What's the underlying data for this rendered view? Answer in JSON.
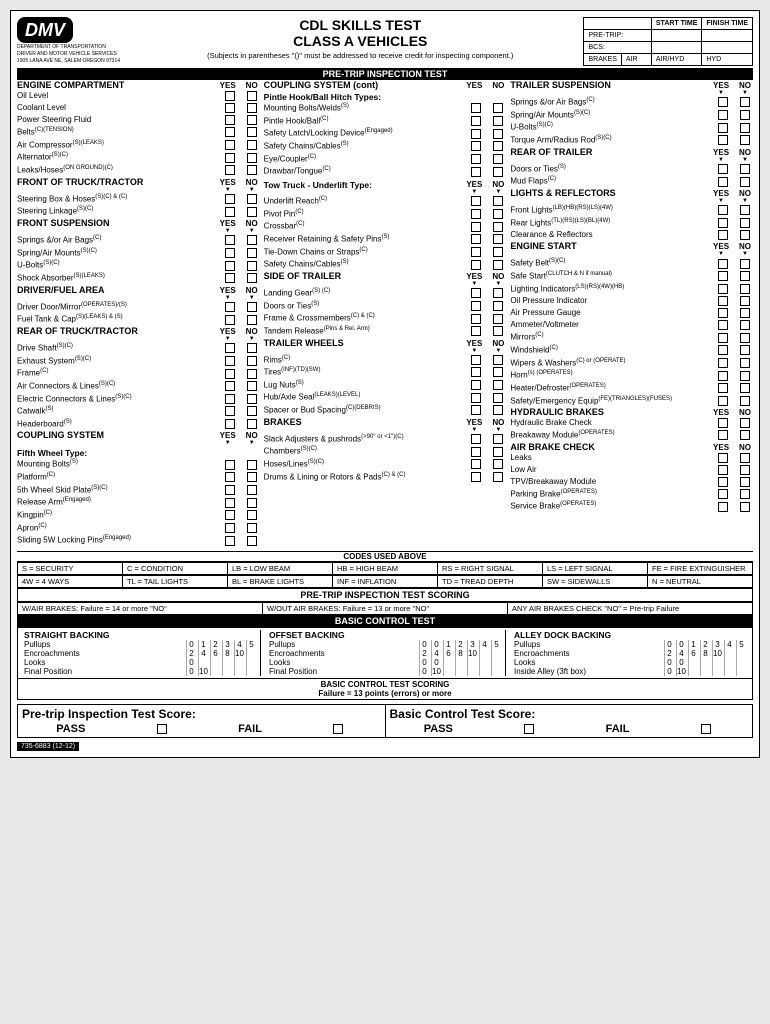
{
  "header": {
    "logo": "DMV",
    "dept1": "DEPARTMENT OF TRANSPORTATION",
    "dept2": "DRIVER AND MOTOR VEHICLE SERVICES",
    "dept3": "1905 LANA AVE NE, SALEM OREGON 97314",
    "title1": "CDL SKILLS TEST",
    "title2": "CLASS A VEHICLES",
    "note": "(Subjects in parentheses \"()\" must be addressed to receive credit for inspecting component.)",
    "time": {
      "start": "START TIME",
      "finish": "FINISH TIME",
      "pretrip": "PRE-TRIP:",
      "bcs": "BCS:",
      "brakes": "BRAKES",
      "air": "AIR",
      "airhyd": "AIR/HYD",
      "hyd": "HYD"
    }
  },
  "bars": {
    "pretrip": "PRE-TRIP INSPECTION TEST",
    "codes": "CODES USED ABOVE",
    "pretripScoring": "PRE-TRIP INSPECTION TEST SCORING",
    "bct": "BASIC CONTROL TEST",
    "bctScoring": "BASIC CONTROL TEST SCORING"
  },
  "yn": {
    "yes": "YES",
    "no": "NO"
  },
  "col1": {
    "s1": "ENGINE COMPARTMENT",
    "s1_items": [
      "Oil Level",
      "Coolant Level",
      "Power Steering Fluid",
      "Belts (C)(TENSION)",
      "Air Compressor (S)(LEAKS)",
      "Alternator (S)(C)",
      "Leaks/Hoses (ON GROUND)(C)"
    ],
    "s2": "FRONT OF TRUCK/TRACTOR",
    "s2_items": [
      "Steering Box & Hoses (S)(C) & (C)",
      "Steering Linkage (S)(C)"
    ],
    "s3": "FRONT SUSPENSION",
    "s3_items": [
      "Springs &/or Air Bags (C)",
      "Spring/Air Mounts (S)(C)",
      "U-Bolts (S)(C)",
      "Shock Absorber (S)(LEAKS)"
    ],
    "s4": "DRIVER/FUEL AREA",
    "s4_items": [
      "Driver Door/Mirror (OPERATES)/(S)",
      "Fuel Tank & Cap (S)(LEAKS) & (S)"
    ],
    "s5": "REAR OF TRUCK/TRACTOR",
    "s5_items": [
      "Drive Shaft (S)(C)",
      "Exhaust System (S)(C)",
      "Frame (C)",
      "Air Connectors & Lines (S)(C)",
      "Electric Connectors & Lines (S)(C)",
      "Catwalk (S)",
      "Headerboard (S)"
    ],
    "s6": "COUPLING SYSTEM",
    "s6_sub": "Fifth Wheel Type:",
    "s6_items": [
      "Mounting Bolts (S)",
      "Platform (C)",
      "5th Wheel Skid Plate (S)(C)",
      "Release Arm (Engaged)",
      "Kingpin (C)",
      "Apron (C)",
      "Sliding 5W Locking Pins (Engaged)"
    ]
  },
  "col2": {
    "s1": "COUPLING SYSTEM (cont)",
    "s1_sub": "Pintle Hook/Ball Hitch Types:",
    "s1_items": [
      "Mounting Bolts/Welds (S)",
      "Pintle Hook/Ball (C)",
      "Safety Latch/Locking Device (Engaged)",
      "Safety Chains/Cables (S)",
      "Eye/Coupler (C)",
      "Drawbar/Tongue (C)"
    ],
    "s1_sub2": "Tow Truck - Underlift Type:",
    "s1_items2": [
      "Underlift Reach (C)",
      "Pivot Pin (C)",
      "Crossbar (C)",
      "Receiver Retaining & Safety Pins (S)",
      "Tie-Down Chains or Straps (C)",
      "Safety Chains/Cables (S)"
    ],
    "s2": "SIDE OF TRAILER",
    "s2_items": [
      "Landing Gear (S) (C)",
      "Doors or Ties (S)",
      "Frame & Crossmembers (C) & (C)",
      "Tandem Release (Pins & Rel. Arm)"
    ],
    "s3": "TRAILER WHEELS",
    "s3_items": [
      "Rims (C)",
      "Tires (INF)(TD)(SW)",
      "Lug Nuts (S)",
      "Hub/Axle Seal (LEAKS)(LEVEL)",
      "Spacer or Bud Spacing (C)(DEBRIS)"
    ],
    "s4": "BRAKES",
    "s4_items": [
      "Slack Adjusters & pushrods (>90° or <1\")(C)",
      "Chambers (S)(C)",
      "Hoses/Lines (S)(C)",
      "Drums & Lining or Rotors & Pads (C) & (C)"
    ]
  },
  "col3": {
    "s1": "TRAILER SUSPENSION",
    "s1_items": [
      "Springs &/or Air Bags (C)",
      "Spring/Air Mounts (S)(C)",
      "U-Bolts (S)(C)",
      "Torque Arm/Radius Rod (S)(C)"
    ],
    "s2": "REAR OF TRAILER",
    "s2_items": [
      "Doors or Ties (S)",
      "Mud Flaps (C)"
    ],
    "s3": "LIGHTS & REFLECTORS",
    "s3_items": [
      "Front Lights (LB)(HB)(RS)(LS)(4W)",
      "Rear Lights (TL)(RS)(LS)(BL)(4W)",
      "Clearance & Reflectors"
    ],
    "s4": "ENGINE START",
    "s4_items": [
      "Safety Belt (S)(C)",
      "Safe Start (CLUTCH & N if manual)",
      "Lighting Indicators (LS)(RS)(4W)(HB)",
      "Oil Pressure Indicator",
      "Air Pressure Gauge",
      "Ammeter/Voltmeter",
      "Mirrors (C)",
      "Windshield (C)",
      "Wipers & Washers (C) or (OPERATE)",
      "Horn(s) (OPERATES)",
      "Heater/Defroster (OPERATES)",
      "Safety/Emergency Equip (FE)(TRIANGLES)(FUSES)"
    ],
    "s5": "HYDRAULIC BRAKES",
    "s5_items": [
      "Hydraulic Brake Check",
      "Breakaway Module (OPERATES)"
    ],
    "s6": "AIR BRAKE CHECK",
    "s6_items": [
      "Leaks",
      "Low Air",
      "TPV/Breakaway Module",
      "Parking Brake (OPERATES)",
      "Service Brake (OPERATES)"
    ]
  },
  "codes": [
    [
      "S = SECURITY",
      "C = CONDITION",
      "LB = LOW BEAM",
      "HB = HIGH BEAM",
      "RS = RIGHT SIGNAL",
      "LS = LEFT SIGNAL",
      "FE = FIRE EXTINGUISHER"
    ],
    [
      "4W = 4 WAYS",
      "TL = TAIL LIGHTS",
      "BL = BRAKE LIGHTS",
      "INF = INFLATION",
      "TD = TREAD DEPTH",
      "SW = SIDEWALLS",
      "N = NEUTRAL"
    ]
  ],
  "pretripScoring": [
    "W/AIR BRAKES: Failure = 14 or more \"NO\"",
    "W/OUT AIR BRAKES: Failure = 13 or more \"NO\"",
    "ANY AIR BRAKES CHECK \"NO\" = Pre-trip Failure"
  ],
  "bct": {
    "cols": [
      {
        "head": "STRAIGHT BACKING",
        "rows": [
          [
            "Pullups",
            [
              "0",
              "1",
              "2",
              "3",
              "4",
              "5"
            ]
          ],
          [
            "Encroachments",
            [
              "2",
              "4",
              "6",
              "8",
              "10",
              ""
            ]
          ],
          [
            "Looks",
            [
              "0",
              "",
              "",
              "",
              "",
              ""
            ]
          ],
          [
            "Final Position",
            [
              "0",
              "10",
              "",
              "",
              "",
              ""
            ]
          ]
        ]
      },
      {
        "head": "OFFSET BACKING",
        "rows": [
          [
            "Pullups",
            [
              "0",
              "0",
              "1",
              "2",
              "3",
              "4",
              "5"
            ]
          ],
          [
            "Encroachments",
            [
              "2",
              "4",
              "6",
              "8",
              "10",
              "",
              ""
            ]
          ],
          [
            "Looks",
            [
              "0",
              "0",
              "",
              "",
              "",
              "",
              ""
            ]
          ],
          [
            "Final Position",
            [
              "0",
              "10",
              "",
              "",
              "",
              "",
              ""
            ]
          ]
        ]
      },
      {
        "head": "ALLEY DOCK BACKING",
        "rows": [
          [
            "Pullups",
            [
              "0",
              "0",
              "1",
              "2",
              "3",
              "4",
              "5"
            ]
          ],
          [
            "Encroachments",
            [
              "2",
              "4",
              "6",
              "8",
              "10",
              "",
              ""
            ]
          ],
          [
            "Looks",
            [
              "0",
              "0",
              "",
              "",
              "",
              "",
              ""
            ]
          ],
          [
            "Inside Alley (3ft box)",
            [
              "0",
              "10",
              "",
              "",
              "",
              "",
              ""
            ]
          ]
        ]
      }
    ],
    "scoring": "Failure = 13 points (errors) or more"
  },
  "scores": {
    "pretrip": "Pre-trip Inspection Test Score:",
    "bct": "Basic Control Test Score:",
    "pass": "PASS",
    "fail": "FAIL"
  },
  "footer": "735-6883 (12-12)"
}
